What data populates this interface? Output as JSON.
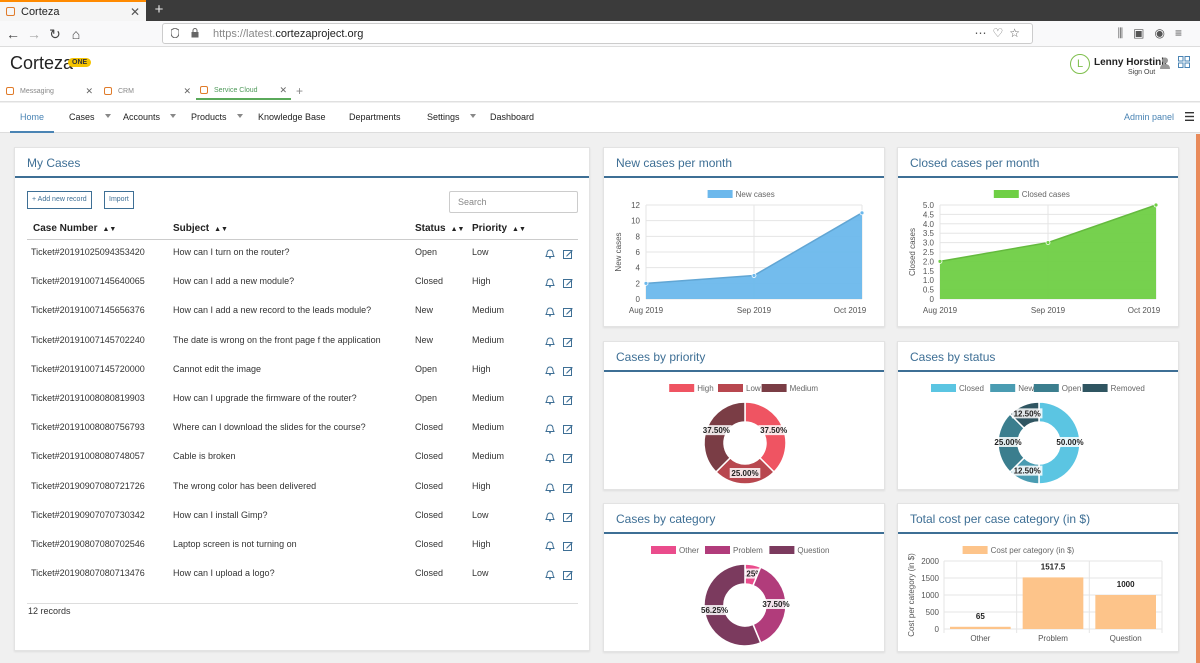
{
  "browser": {
    "tab_title": "Corteza",
    "url_prefix": "https://latest.",
    "url_domain": "cortezaproject.org"
  },
  "app": {
    "logo": "Corteza",
    "badge": "ONE",
    "user_initial": "L",
    "user_name": "Lenny Horstink",
    "sign_out": "Sign Out"
  },
  "app_tabs": [
    "Messaging",
    "CRM",
    "Service Cloud"
  ],
  "nav": {
    "items": [
      "Home",
      "Cases",
      "Accounts",
      "Products",
      "Knowledge Base",
      "Departments",
      "Settings",
      "Dashboard"
    ],
    "admin_panel": "Admin panel"
  },
  "my_cases": {
    "title": "My Cases",
    "add_button": "+ Add new record",
    "import_button": "Import",
    "search_placeholder": "Search",
    "columns": [
      "Case Number",
      "Subject",
      "Status",
      "Priority"
    ],
    "rows": [
      [
        "Ticket#20191025094353420",
        "How can I turn on the router?",
        "Open",
        "Low"
      ],
      [
        "Ticket#20191007145640065",
        "How can I add a new module?",
        "Closed",
        "High"
      ],
      [
        "Ticket#20191007145656376",
        "How can I add a new record to the leads module?",
        "New",
        "Medium"
      ],
      [
        "Ticket#20191007145702240",
        "The date is wrong on the front page f the application",
        "New",
        "Medium"
      ],
      [
        "Ticket#20191007145720000",
        "Cannot edit the image",
        "Open",
        "High"
      ],
      [
        "Ticket#20191008080819903",
        "How can I upgrade the firmware of the router?",
        "Open",
        "Medium"
      ],
      [
        "Ticket#20191008080756793",
        "Where can I download the slides for the course?",
        "Closed",
        "Medium"
      ],
      [
        "Ticket#20191008080748057",
        "Cable is broken",
        "Closed",
        "Medium"
      ],
      [
        "Ticket#20190907080721726",
        "The wrong color has been delivered",
        "Closed",
        "High"
      ],
      [
        "Ticket#20190907070730342",
        "How can I install Gimp?",
        "Closed",
        "Low"
      ],
      [
        "Ticket#20190807080702546",
        "Laptop screen is not turning on",
        "Closed",
        "High"
      ],
      [
        "Ticket#20190807080713476",
        "How can I upload a logo?",
        "Closed",
        "Low"
      ]
    ],
    "record_count": "12 records"
  },
  "chart_data": [
    {
      "type": "area",
      "title": "New cases per month",
      "categories": [
        "Aug 2019",
        "Sep 2019",
        "Oct 2019"
      ],
      "series": [
        {
          "name": "New cases",
          "values": [
            2,
            3,
            11
          ],
          "color": "#6cb8ec"
        }
      ],
      "ylabel": "New cases",
      "ylim": [
        0,
        12
      ],
      "yticks": [
        0,
        2,
        4,
        6,
        8,
        10,
        12
      ]
    },
    {
      "type": "area",
      "title": "Closed cases per month",
      "categories": [
        "Aug 2019",
        "Sep 2019",
        "Oct 2019"
      ],
      "series": [
        {
          "name": "Closed cases",
          "values": [
            2,
            3,
            5
          ],
          "color": "#6fcf45"
        }
      ],
      "ylabel": "Closed cases",
      "ylim": [
        0,
        5
      ],
      "yticks": [
        "0",
        "0.5",
        "1.0",
        "1.5",
        "2.0",
        "2.5",
        "3.0",
        "3.5",
        "4.0",
        "4.5",
        "5.0"
      ]
    },
    {
      "type": "pie",
      "title": "Cases by priority",
      "labels": [
        "High",
        "Low",
        "Medium"
      ],
      "values": [
        37.5,
        25.0,
        37.5
      ],
      "data_labels": [
        "37.50%",
        "25.00%",
        "37.50%"
      ],
      "colors": [
        "#ef5462",
        "#b8474f",
        "#7a3d45"
      ]
    },
    {
      "type": "pie",
      "title": "Cases by status",
      "labels": [
        "Closed",
        "New",
        "Open",
        "Removed"
      ],
      "values": [
        50.0,
        12.5,
        25.0,
        12.5
      ],
      "data_labels": [
        "50.00%",
        "12.50%",
        "25.00%",
        "12.50%"
      ],
      "colors": [
        "#5bc5e2",
        "#4a9cb2",
        "#3b7e8e",
        "#2f5561"
      ]
    },
    {
      "type": "pie",
      "title": "Cases by category",
      "labels": [
        "Other",
        "Problem",
        "Question"
      ],
      "values": [
        6.25,
        37.5,
        56.25
      ],
      "data_labels": [
        "6.25%",
        "37.50%",
        "56.25%"
      ],
      "colors": [
        "#ea4c8c",
        "#b13c7b",
        "#7b3a5e"
      ]
    },
    {
      "type": "bar",
      "title": "Total cost per case category (in $)",
      "categories": [
        "Other",
        "Problem",
        "Question"
      ],
      "series": [
        {
          "name": "Cost per category (in $)",
          "values": [
            65,
            1517.5,
            1000
          ],
          "color": "#fdc48a"
        }
      ],
      "data_labels": [
        "65",
        "1517.5",
        "1000"
      ],
      "ylabel": "Cost per category (in $)",
      "ylim": [
        0,
        2000
      ],
      "yticks": [
        0,
        500,
        1000,
        1500,
        2000
      ]
    }
  ]
}
